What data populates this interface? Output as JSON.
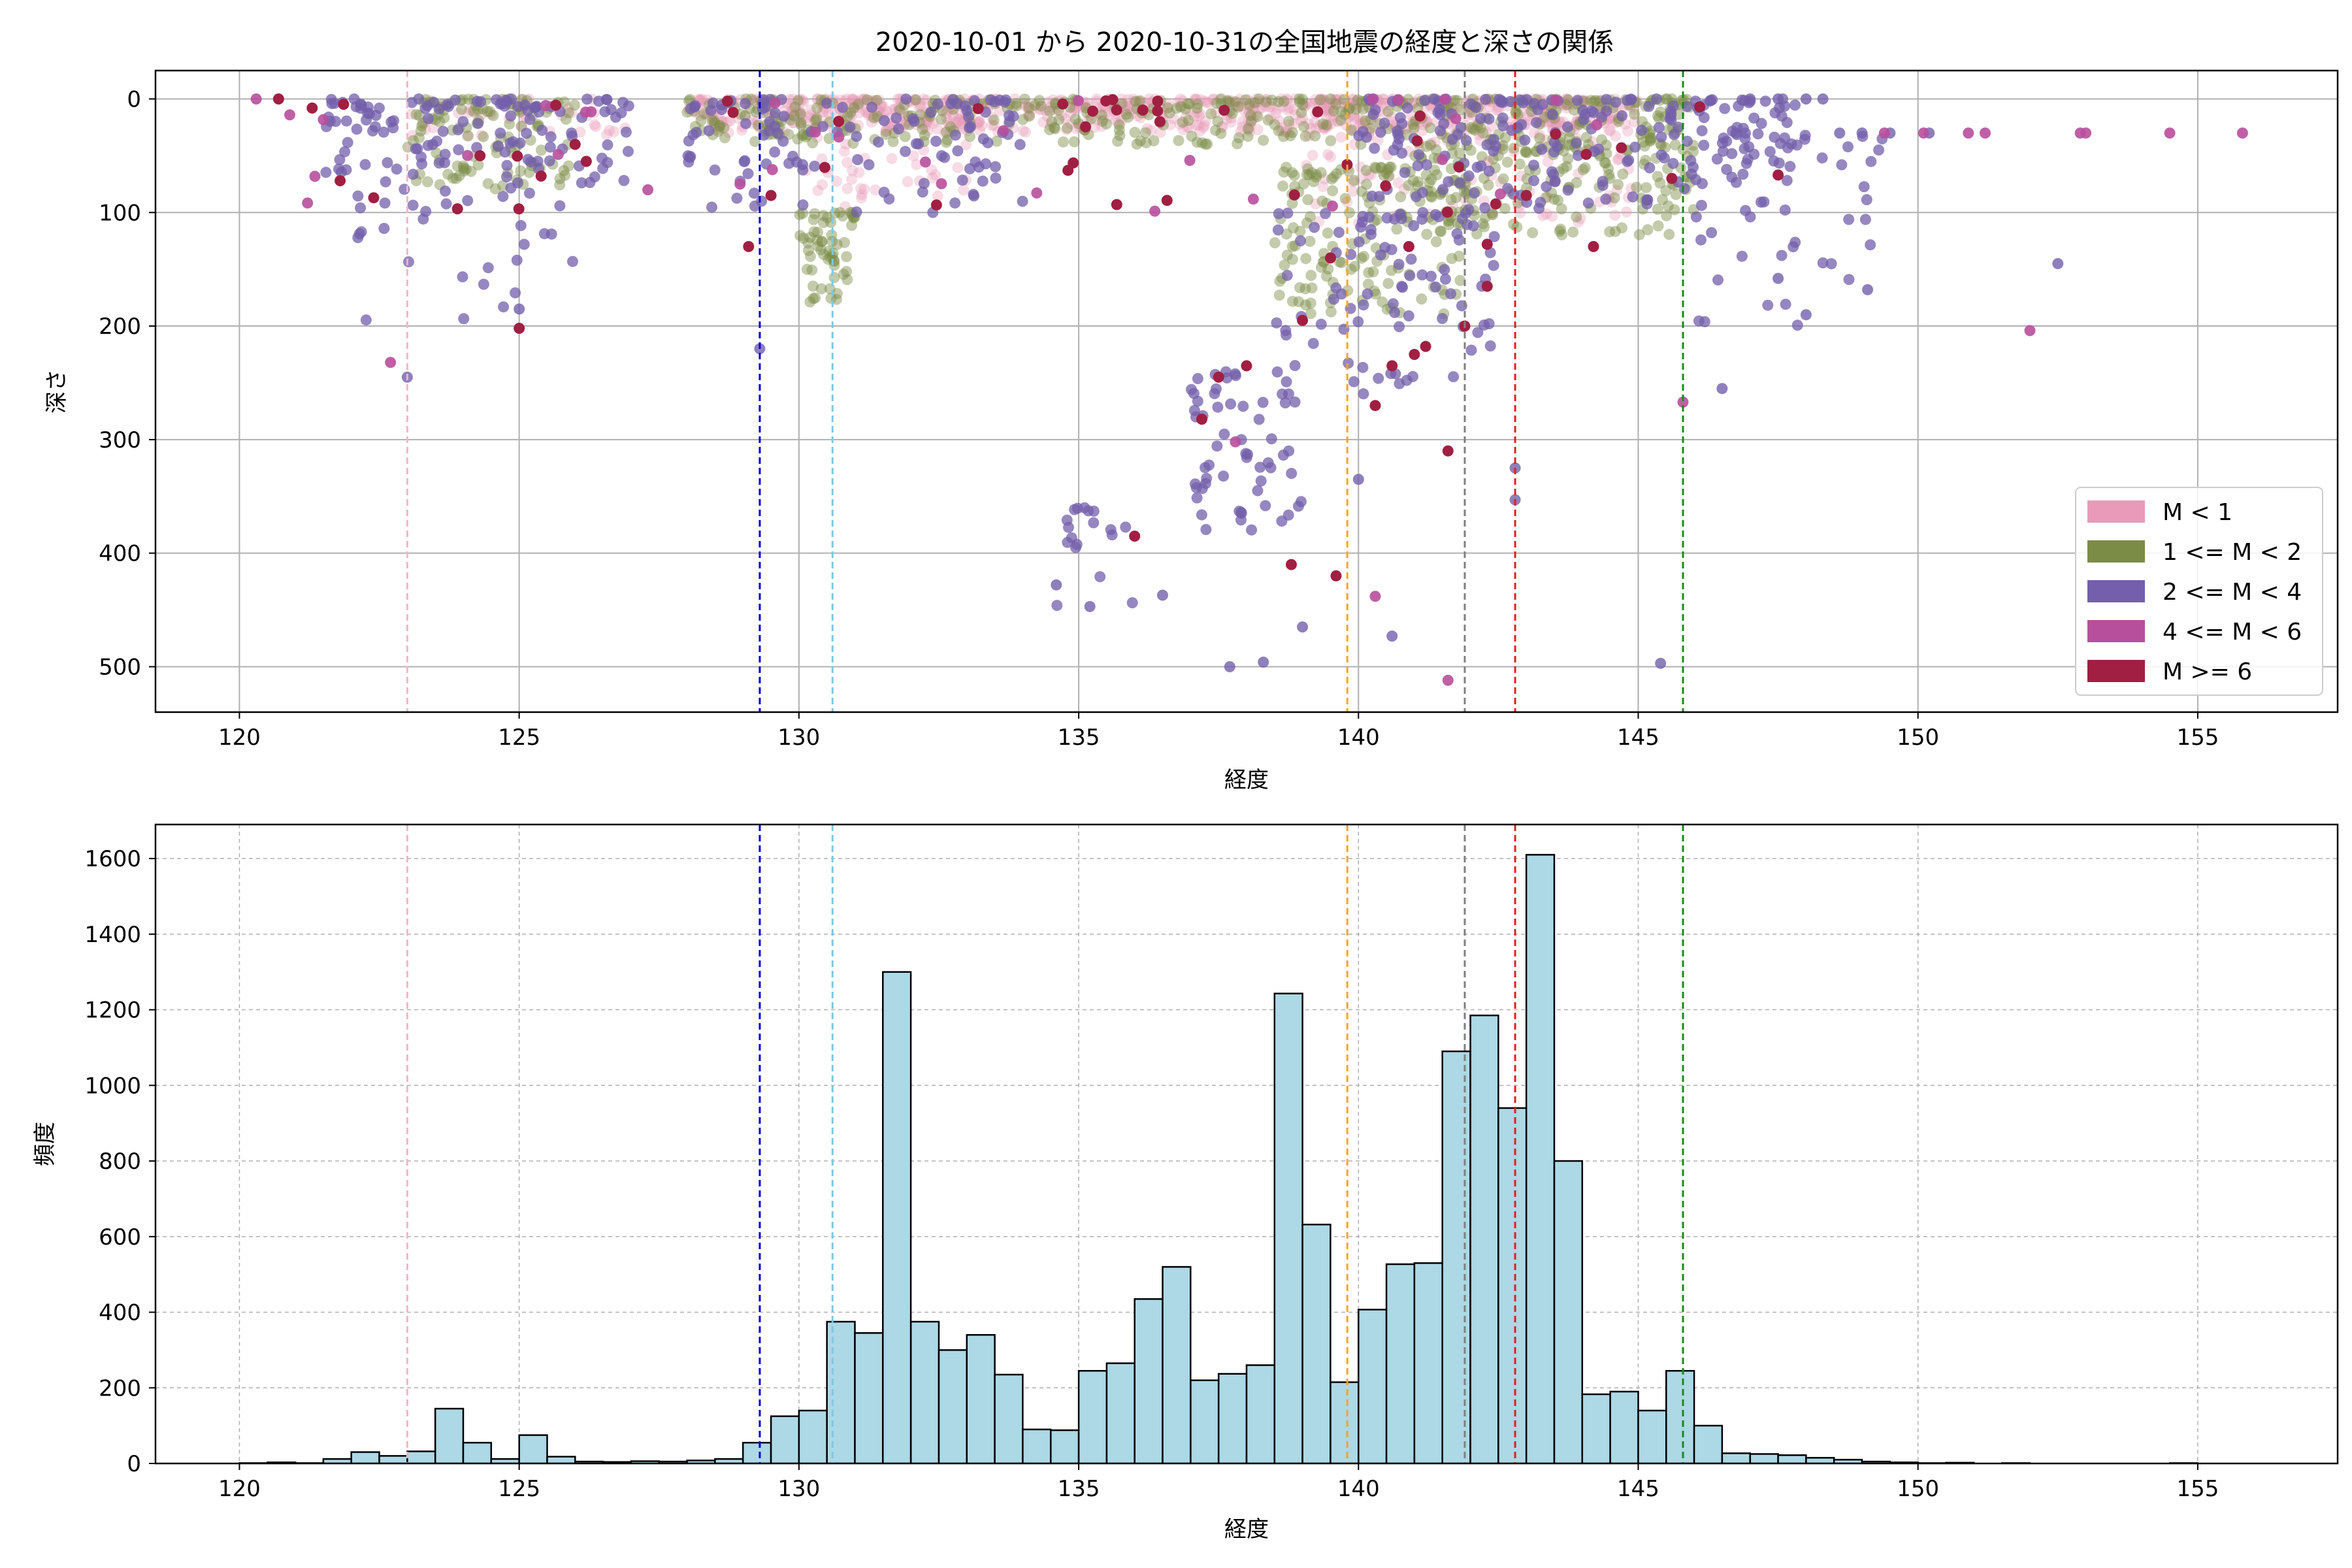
{
  "figure_title": "2020-10-01 から 2020-10-31の全国地震の経度と深さの関係",
  "chart_data": [
    {
      "type": "scatter",
      "xlabel": "経度",
      "ylabel": "深さ",
      "xlim": [
        118.5,
        157.5
      ],
      "ylim": [
        540,
        -25
      ],
      "y_inverted": true,
      "grid": true,
      "x_ticks": [
        120,
        125,
        130,
        135,
        140,
        145,
        150,
        155
      ],
      "y_ticks": [
        0,
        100,
        200,
        300,
        400,
        500
      ],
      "legend_position": "bottom-right",
      "legend": [
        {
          "label": "M < 1",
          "color": "#e89ab8"
        },
        {
          "label": "1 <= M < 2",
          "color": "#7a8c45"
        },
        {
          "label": "2 <= M < 4",
          "color": "#735fab"
        },
        {
          "label": "4 <= M < 6",
          "color": "#b84f9c"
        },
        {
          "label": "M >= 6",
          "color": "#a11f42"
        }
      ],
      "vertical_lines": [
        {
          "x": 123.0,
          "color": "#f4b6c4"
        },
        {
          "x": 129.3,
          "color": "#0000cc"
        },
        {
          "x": 130.6,
          "color": "#7ec8e3"
        },
        {
          "x": 139.8,
          "color": "#f5a623"
        },
        {
          "x": 141.9,
          "color": "#808080"
        },
        {
          "x": 142.8,
          "color": "#e02020"
        },
        {
          "x": 145.8,
          "color": "#1a8a1a"
        }
      ],
      "clusters": [
        {
          "name": "M < 1",
          "color": "#e89ab8",
          "opacity": 0.35,
          "regions": [
            {
              "x": [
                128,
                145
              ],
              "y": [
                0,
                30
              ],
              "n": 700
            },
            {
              "x": [
                130,
                133
              ],
              "y": [
                0,
                100
              ],
              "n": 90
            },
            {
              "x": [
                139,
                145
              ],
              "y": [
                20,
                110
              ],
              "n": 120
            },
            {
              "x": [
                123,
                127
              ],
              "y": [
                0,
                40
              ],
              "n": 40
            }
          ]
        },
        {
          "name": "1 <= M < 2",
          "color": "#7a8c45",
          "opacity": 0.45,
          "regions": [
            {
              "x": [
                128,
                146
              ],
              "y": [
                0,
                40
              ],
              "n": 420
            },
            {
              "x": [
                130,
                131
              ],
              "y": [
                100,
                180
              ],
              "n": 60
            },
            {
              "x": [
                138.5,
                142
              ],
              "y": [
                60,
                190
              ],
              "n": 160
            },
            {
              "x": [
                123,
                126
              ],
              "y": [
                0,
                80
              ],
              "n": 110
            },
            {
              "x": [
                141,
                146
              ],
              "y": [
                40,
                120
              ],
              "n": 160
            }
          ]
        },
        {
          "name": "2 <= M < 4",
          "color": "#735fab",
          "opacity": 0.75,
          "regions": [
            {
              "x": [
                121.5,
                127
              ],
              "y": [
                0,
                80
              ],
              "n": 130
            },
            {
              "x": [
                128,
                134
              ],
              "y": [
                0,
                100
              ],
              "n": 120
            },
            {
              "x": [
                140,
                148
              ],
              "y": [
                0,
                100
              ],
              "n": 220
            },
            {
              "x": [
                137,
                139
              ],
              "y": [
                240,
                380
              ],
              "n": 60
            },
            {
              "x": [
                134.5,
                136
              ],
              "y": [
                360,
                450
              ],
              "n": 18
            },
            {
              "x": [
                138.5,
                142.5
              ],
              "y": [
                100,
                260
              ],
              "n": 90
            },
            {
              "x": [
                146,
                149.5
              ],
              "y": [
                30,
                200
              ],
              "n": 40
            },
            {
              "x": [
                122,
                126
              ],
              "y": [
                80,
                200
              ],
              "n": 30
            }
          ]
        },
        {
          "name": "4 <= M < 6",
          "color": "#b84f9c",
          "opacity": 0.9,
          "regions": [
            {
              "x": [
                121,
                146
              ],
              "y": [
                0,
                100
              ],
              "n": 30
            }
          ]
        },
        {
          "name": "M >= 6",
          "color": "#a11f42",
          "opacity": 1.0,
          "regions": [
            {
              "x": [
                121,
                145
              ],
              "y": [
                0,
                110
              ],
              "n": 35
            }
          ]
        }
      ],
      "points": [
        {
          "x": 123.0,
          "y": 245,
          "c": 2
        },
        {
          "x": 122.7,
          "y": 232,
          "c": 3
        },
        {
          "x": 125.0,
          "y": 202,
          "c": 4
        },
        {
          "x": 125.0,
          "y": 185,
          "c": 2
        },
        {
          "x": 129.3,
          "y": 220,
          "c": 2
        },
        {
          "x": 139.0,
          "y": 195,
          "c": 4
        },
        {
          "x": 140.3,
          "y": 270,
          "c": 4
        },
        {
          "x": 140.6,
          "y": 235,
          "c": 4
        },
        {
          "x": 141.2,
          "y": 218,
          "c": 4
        },
        {
          "x": 141.0,
          "y": 225,
          "c": 4
        },
        {
          "x": 141.6,
          "y": 310,
          "c": 4
        },
        {
          "x": 142.3,
          "y": 165,
          "c": 4
        },
        {
          "x": 141.9,
          "y": 200,
          "c": 4
        },
        {
          "x": 137.5,
          "y": 245,
          "c": 4
        },
        {
          "x": 137.2,
          "y": 282,
          "c": 4
        },
        {
          "x": 138.0,
          "y": 235,
          "c": 4
        },
        {
          "x": 136.0,
          "y": 385,
          "c": 4
        },
        {
          "x": 138.8,
          "y": 410,
          "c": 4
        },
        {
          "x": 139.6,
          "y": 420,
          "c": 4
        },
        {
          "x": 137.8,
          "y": 302,
          "c": 3
        },
        {
          "x": 140.3,
          "y": 438,
          "c": 3
        },
        {
          "x": 141.6,
          "y": 512,
          "c": 3
        },
        {
          "x": 145.8,
          "y": 267,
          "c": 3
        },
        {
          "x": 152.0,
          "y": 204,
          "c": 3
        },
        {
          "x": 145.4,
          "y": 497,
          "c": 2
        },
        {
          "x": 137.7,
          "y": 500,
          "c": 2
        },
        {
          "x": 138.3,
          "y": 496,
          "c": 2
        },
        {
          "x": 139.0,
          "y": 465,
          "c": 2
        },
        {
          "x": 140.6,
          "y": 473,
          "c": 2
        },
        {
          "x": 136.5,
          "y": 437,
          "c": 2
        },
        {
          "x": 135.2,
          "y": 447,
          "c": 2
        },
        {
          "x": 134.6,
          "y": 428,
          "c": 2
        },
        {
          "x": 140.0,
          "y": 335,
          "c": 2
        },
        {
          "x": 142.8,
          "y": 325,
          "c": 2
        },
        {
          "x": 142.8,
          "y": 353,
          "c": 2
        },
        {
          "x": 146.5,
          "y": 255,
          "c": 2
        },
        {
          "x": 152.5,
          "y": 145,
          "c": 2
        },
        {
          "x": 149.1,
          "y": 168,
          "c": 2
        },
        {
          "x": 148.0,
          "y": 190,
          "c": 2
        },
        {
          "x": 147.5,
          "y": 158,
          "c": 2
        },
        {
          "x": 148.6,
          "y": 30,
          "c": 2
        },
        {
          "x": 149.0,
          "y": 30,
          "c": 2
        },
        {
          "x": 149.5,
          "y": 30,
          "c": 2
        },
        {
          "x": 150.2,
          "y": 30,
          "c": 2
        },
        {
          "x": 149.4,
          "y": 30,
          "c": 3
        },
        {
          "x": 150.1,
          "y": 30,
          "c": 3
        },
        {
          "x": 150.9,
          "y": 30,
          "c": 3
        },
        {
          "x": 151.2,
          "y": 30,
          "c": 3
        },
        {
          "x": 152.9,
          "y": 30,
          "c": 3
        },
        {
          "x": 153.0,
          "y": 30,
          "c": 3
        },
        {
          "x": 154.5,
          "y": 30,
          "c": 3
        },
        {
          "x": 155.8,
          "y": 30,
          "c": 3
        },
        {
          "x": 147.0,
          "y": 0,
          "c": 2
        },
        {
          "x": 147.5,
          "y": 0,
          "c": 2
        },
        {
          "x": 148.0,
          "y": 0,
          "c": 2
        },
        {
          "x": 148.3,
          "y": 0,
          "c": 2
        },
        {
          "x": 120.3,
          "y": 0,
          "c": 3
        },
        {
          "x": 120.7,
          "y": 0,
          "c": 4
        },
        {
          "x": 120.9,
          "y": 14,
          "c": 3
        },
        {
          "x": 121.3,
          "y": 8,
          "c": 4
        },
        {
          "x": 121.8,
          "y": 72,
          "c": 4
        },
        {
          "x": 122.4,
          "y": 87,
          "c": 4
        },
        {
          "x": 124.3,
          "y": 50,
          "c": 4
        },
        {
          "x": 126.2,
          "y": 55,
          "c": 4
        },
        {
          "x": 127.3,
          "y": 80,
          "c": 3
        },
        {
          "x": 129.5,
          "y": 85,
          "c": 4
        },
        {
          "x": 129.1,
          "y": 130,
          "c": 4
        },
        {
          "x": 139.5,
          "y": 140,
          "c": 4
        },
        {
          "x": 140.9,
          "y": 130,
          "c": 4
        },
        {
          "x": 141.8,
          "y": 60,
          "c": 4
        },
        {
          "x": 142.3,
          "y": 128,
          "c": 4
        },
        {
          "x": 143.0,
          "y": 85,
          "c": 4
        },
        {
          "x": 144.2,
          "y": 130,
          "c": 4
        },
        {
          "x": 144.7,
          "y": 43,
          "c": 4
        },
        {
          "x": 145.6,
          "y": 70,
          "c": 4
        },
        {
          "x": 147.5,
          "y": 67,
          "c": 4
        },
        {
          "x": 146.1,
          "y": 7,
          "c": 4
        },
        {
          "x": 141.1,
          "y": 15,
          "c": 4
        },
        {
          "x": 137.6,
          "y": 10,
          "c": 4
        },
        {
          "x": 126.0,
          "y": 40,
          "c": 4
        }
      ]
    },
    {
      "type": "bar",
      "xlabel": "経度",
      "ylabel": "頻度",
      "xlim": [
        118.5,
        157.5
      ],
      "ylim": [
        0,
        1690
      ],
      "grid": true,
      "grid_style": "dashed",
      "x_ticks": [
        120,
        125,
        130,
        135,
        140,
        145,
        150,
        155
      ],
      "y_ticks": [
        0,
        200,
        400,
        600,
        800,
        1000,
        1200,
        1400,
        1600
      ],
      "bar_color": "#add8e6",
      "bin_start": 120.0,
      "bin_width": 0.5,
      "values": [
        1,
        3,
        1,
        12,
        30,
        20,
        32,
        145,
        55,
        12,
        75,
        18,
        5,
        4,
        6,
        5,
        8,
        12,
        55,
        125,
        140,
        375,
        345,
        1300,
        375,
        300,
        340,
        235,
        90,
        88,
        245,
        265,
        435,
        520,
        220,
        237,
        260,
        1243,
        632,
        215,
        407,
        527,
        530,
        1090,
        1185,
        940,
        1610,
        800,
        183,
        190,
        140,
        245,
        100,
        27,
        25,
        22,
        15,
        10,
        5,
        3,
        1,
        2,
        0,
        1,
        0,
        0,
        0,
        0,
        0,
        1,
        0,
        0,
        0,
        0
      ],
      "vertical_lines": [
        {
          "x": 123.0,
          "color": "#f4b6c4"
        },
        {
          "x": 129.3,
          "color": "#0000cc"
        },
        {
          "x": 130.6,
          "color": "#7ec8e3"
        },
        {
          "x": 139.8,
          "color": "#f5a623"
        },
        {
          "x": 141.9,
          "color": "#808080"
        },
        {
          "x": 142.8,
          "color": "#e02020"
        },
        {
          "x": 145.8,
          "color": "#1a8a1a"
        }
      ]
    }
  ]
}
